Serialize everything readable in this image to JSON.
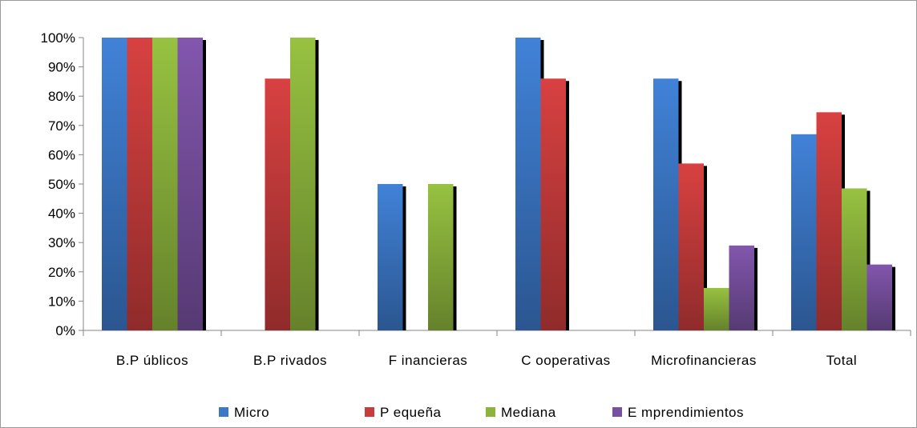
{
  "chart_data": {
    "type": "bar",
    "categories": [
      "B.P úblicos",
      "B.P rivados",
      "F inancieras",
      "C ooperativas",
      "Microfinancieras",
      "Total"
    ],
    "series": [
      {
        "name": "Micro",
        "color": "#3c78c8",
        "values": [
          100,
          0,
          50,
          100,
          86,
          67
        ]
      },
      {
        "name": "P equeña",
        "color": "#c83c3c",
        "values": [
          100,
          86,
          0,
          86,
          57,
          74.5
        ]
      },
      {
        "name": "Mediana",
        "color": "#8cb43c",
        "values": [
          100,
          100,
          50,
          0,
          14.5,
          48.5
        ]
      },
      {
        "name": "E mprendimientos",
        "color": "#7850a0",
        "values": [
          100,
          0,
          0,
          0,
          29,
          22.5
        ]
      }
    ],
    "y_ticks": [
      "0%",
      "10%",
      "20%",
      "30%",
      "40%",
      "50%",
      "60%",
      "70%",
      "80%",
      "90%",
      "100%"
    ],
    "ylim": [
      0,
      100
    ],
    "grid": false,
    "legend_position": "bottom"
  }
}
